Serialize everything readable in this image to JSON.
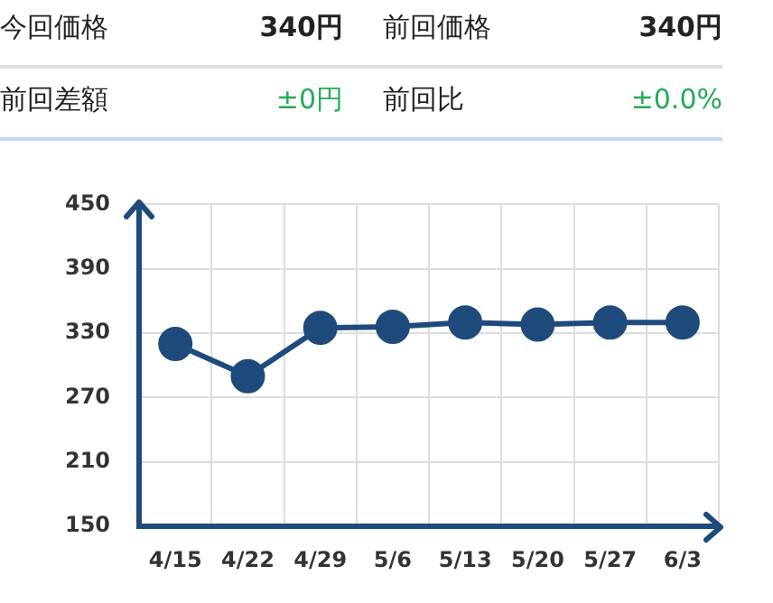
{
  "chart_data": [
    {
      "type": "other",
      "annotations": [
        "今回価格",
        "340円",
        "前回価格",
        "340円",
        "前回差額",
        "±0円",
        "前回比",
        "±0.0%"
      ]
    },
    {
      "type": "line",
      "categories": [
        "4/15",
        "4/22",
        "4/29",
        "5/6",
        "5/13",
        "5/20",
        "5/27",
        "6/3"
      ],
      "series": [
        {
          "color": "#1f4a7c",
          "values": [
            320,
            290,
            335,
            336,
            340,
            338,
            340,
            340
          ]
        }
      ],
      "ylim": [
        150,
        450
      ],
      "yticks": [
        150,
        210,
        270,
        330,
        390,
        450
      ],
      "grid": true,
      "marker": "circle",
      "line_style": "solid",
      "legend": false
    }
  ]
}
